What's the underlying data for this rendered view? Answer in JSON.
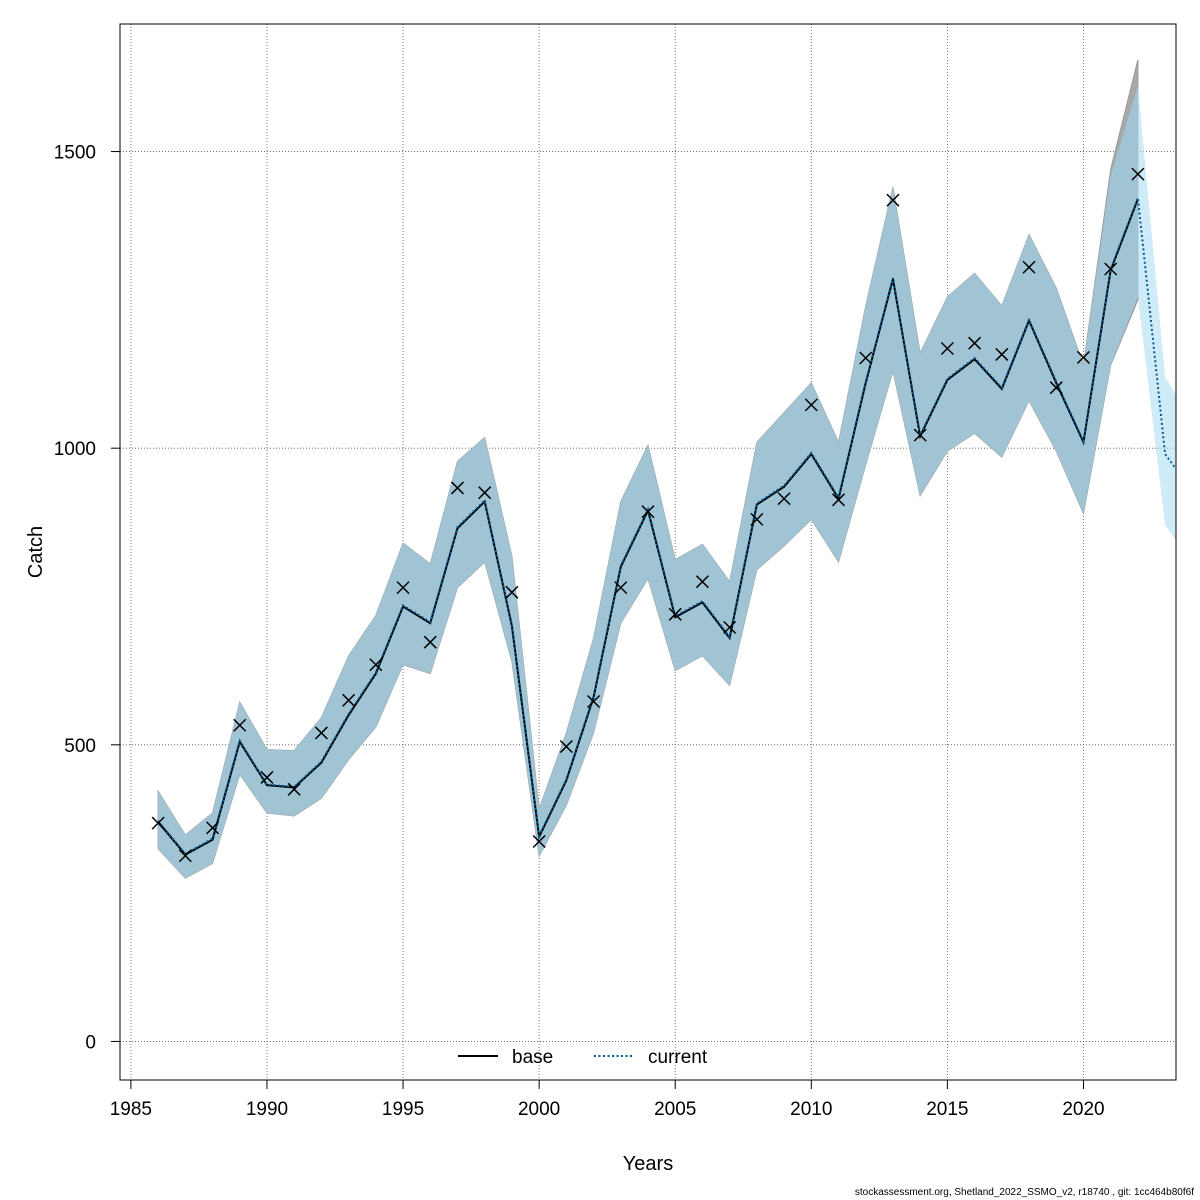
{
  "chart_data": {
    "type": "line",
    "xlabel": "Years",
    "ylabel": "Catch",
    "xlim": [
      1984.6,
      2023.4
    ],
    "ylim": [
      -65,
      1715
    ],
    "x_ticks": [
      "1985",
      "1990",
      "1995",
      "2000",
      "2005",
      "2010",
      "2015",
      "2020"
    ],
    "y_ticks": [
      "0",
      "500",
      "1000",
      "1500"
    ],
    "grid": true,
    "legend_position": "bottom",
    "series": [
      {
        "name": "base",
        "style": "solid",
        "color": "#000000",
        "x": [
          1986,
          1987,
          1988,
          1989,
          1990,
          1991,
          1992,
          1993,
          1994,
          1995,
          1996,
          1997,
          1998,
          1999,
          2000,
          2001,
          2002,
          2003,
          2004,
          2005,
          2006,
          2007,
          2008,
          2009,
          2010,
          2011,
          2012,
          2013,
          2014,
          2015,
          2016,
          2017,
          2018,
          2019,
          2020,
          2021,
          2022
        ],
        "values": [
          370,
          315,
          340,
          505,
          432,
          428,
          470,
          550,
          620,
          733,
          705,
          865,
          910,
          700,
          345,
          440,
          580,
          800,
          895,
          715,
          740,
          680,
          905,
          935,
          990,
          915,
          1110,
          1285,
          1020,
          1115,
          1150,
          1100,
          1215,
          1110,
          1010,
          1300,
          1420
        ],
        "ci_lower": [
          325,
          275,
          300,
          450,
          385,
          380,
          410,
          475,
          530,
          635,
          620,
          765,
          808,
          640,
          312,
          398,
          520,
          705,
          780,
          625,
          650,
          600,
          795,
          835,
          880,
          808,
          972,
          1130,
          920,
          995,
          1025,
          985,
          1080,
          995,
          890,
          1140,
          1250
        ],
        "ci_upper": [
          422,
          348,
          385,
          572,
          492,
          490,
          546,
          650,
          718,
          840,
          805,
          978,
          1018,
          818,
          392,
          520,
          680,
          910,
          1005,
          812,
          838,
          775,
          1010,
          1060,
          1110,
          1010,
          1240,
          1440,
          1160,
          1255,
          1295,
          1240,
          1360,
          1270,
          1140,
          1470,
          1655
        ]
      },
      {
        "name": "current",
        "style": "dotted",
        "color": "#005b99",
        "x": [
          1986,
          1987,
          1988,
          1989,
          1990,
          1991,
          1992,
          1993,
          1994,
          1995,
          1996,
          1997,
          1998,
          1999,
          2000,
          2001,
          2002,
          2003,
          2004,
          2005,
          2006,
          2007,
          2008,
          2009,
          2010,
          2011,
          2012,
          2013,
          2014,
          2015,
          2016,
          2017,
          2018,
          2019,
          2020,
          2021,
          2022,
          2023,
          2023.4
        ],
        "values": [
          372,
          316,
          342,
          507,
          433,
          429,
          472,
          552,
          622,
          735,
          707,
          867,
          912,
          702,
          347,
          442,
          582,
          802,
          897,
          717,
          742,
          682,
          907,
          937,
          992,
          917,
          1112,
          1287,
          1022,
          1117,
          1152,
          1102,
          1217,
          1112,
          1012,
          1302,
          1422,
          990,
          965
        ],
        "ci_lower": [
          325,
          275,
          300,
          450,
          385,
          380,
          410,
          475,
          530,
          635,
          620,
          765,
          808,
          640,
          312,
          398,
          520,
          705,
          780,
          625,
          650,
          600,
          795,
          835,
          880,
          808,
          972,
          1130,
          920,
          995,
          1025,
          985,
          1080,
          995,
          890,
          1140,
          1255,
          870,
          845
        ],
        "ci_upper": [
          422,
          348,
          385,
          572,
          492,
          490,
          546,
          650,
          718,
          840,
          805,
          978,
          1018,
          818,
          392,
          520,
          680,
          910,
          1005,
          812,
          838,
          775,
          1010,
          1060,
          1110,
          1010,
          1240,
          1440,
          1160,
          1255,
          1295,
          1240,
          1360,
          1270,
          1140,
          1460,
          1610,
          1120,
          1090
        ]
      }
    ],
    "observed": {
      "marker": "x",
      "x": [
        1986,
        1987,
        1988,
        1989,
        1990,
        1991,
        1992,
        1993,
        1994,
        1995,
        1996,
        1997,
        1998,
        1999,
        2000,
        2001,
        2002,
        2003,
        2004,
        2005,
        2006,
        2007,
        2008,
        2009,
        2010,
        2011,
        2012,
        2013,
        2014,
        2015,
        2016,
        2017,
        2018,
        2019,
        2020,
        2021,
        2022
      ],
      "values": [
        368,
        313,
        360,
        533,
        445,
        425,
        520,
        575,
        635,
        765,
        673,
        933,
        925,
        757,
        337,
        497,
        573,
        765,
        893,
        720,
        775,
        698,
        880,
        915,
        1073,
        913,
        1152,
        1418,
        1022,
        1168,
        1177,
        1158,
        1305,
        1102,
        1153,
        1302,
        1462
      ]
    },
    "colors": {
      "base_band": "#a8a8a8",
      "current_band": "#a6dbf0",
      "overlap_band": "#a0c4d4",
      "grid": "#555555"
    }
  },
  "footer": "stockassessment.org, Shetland_2022_SSMO_v2, r18740 , git: 1cc464b80f6f"
}
